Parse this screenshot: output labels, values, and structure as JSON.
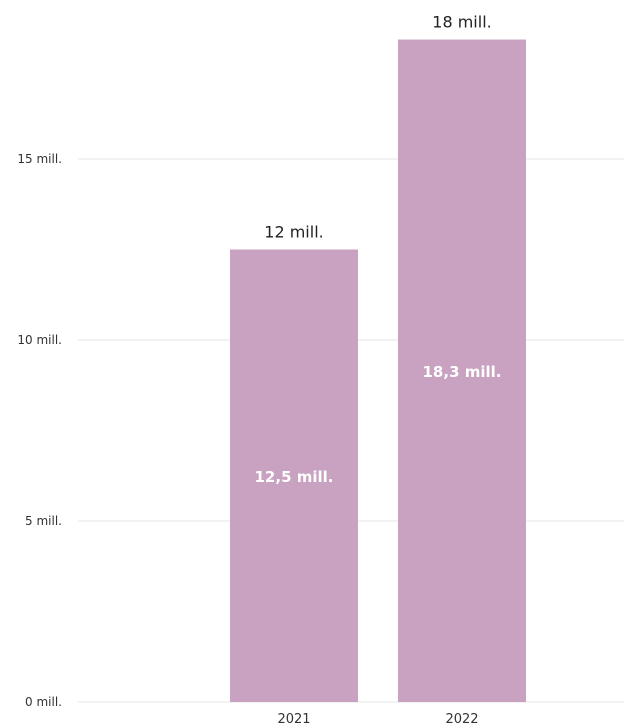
{
  "chart_data": {
    "type": "bar",
    "title": "",
    "xlabel": "",
    "ylabel": "",
    "categories": [
      "2021",
      "2022"
    ],
    "values": [
      12.5,
      18.3
    ],
    "value_labels": [
      "12,5 mill.",
      "18,3 mill."
    ],
    "top_labels": [
      "12 mill.",
      "18 mill."
    ],
    "yticks": [
      {
        "value": 0,
        "label": "0 mill."
      },
      {
        "value": 5,
        "label": "5 mill."
      },
      {
        "value": 10,
        "label": "10 mill."
      },
      {
        "value": 15,
        "label": "15 mill."
      }
    ],
    "ylim": [
      0,
      19.5
    ],
    "grid": true,
    "colors": {
      "bar": "#c8a2c0",
      "grid": "#e6e6e6"
    }
  }
}
